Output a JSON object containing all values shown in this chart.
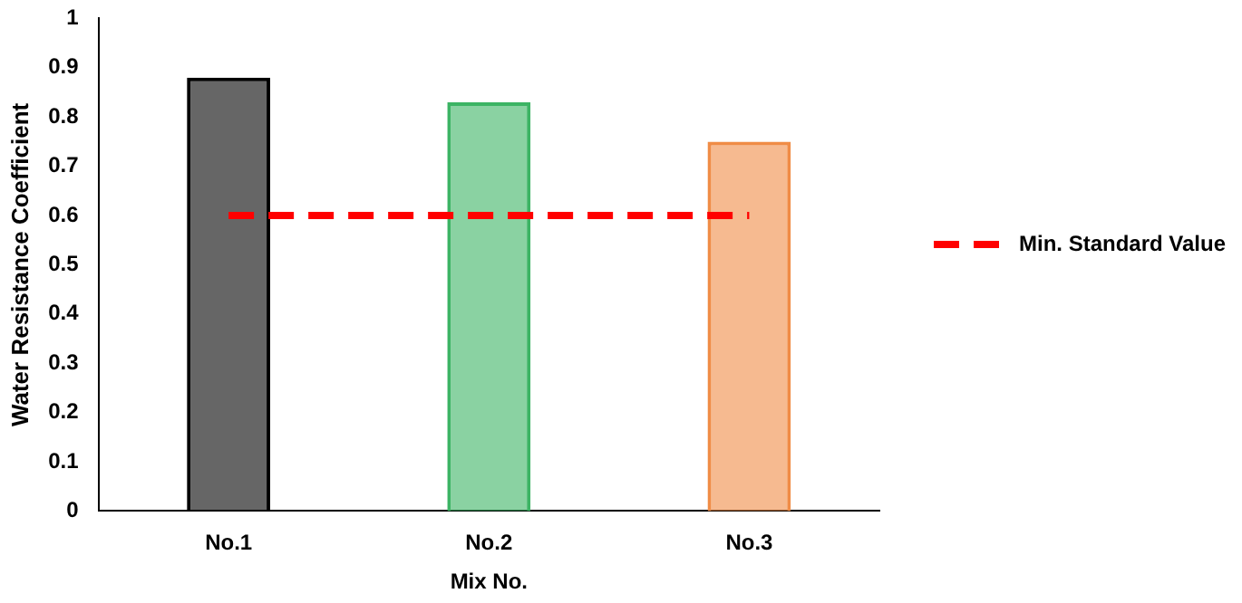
{
  "chart_data": {
    "type": "bar",
    "xlabel": "Mix No.",
    "ylabel": "Water Resistance Coefficient",
    "categories": [
      "No.1",
      "No.2",
      "No.3"
    ],
    "values": [
      0.88,
      0.83,
      0.75
    ],
    "colors": [
      "#000000",
      "#3cb464",
      "#f08c46"
    ],
    "ylim": [
      0,
      1
    ],
    "yticks": [
      0,
      0.1,
      0.2,
      0.3,
      0.4,
      0.5,
      0.6,
      0.7,
      0.8,
      0.9,
      1
    ],
    "grid": false,
    "ref_lines": [
      {
        "axis": "y",
        "value": 0.6,
        "label": "Min. Standard Value",
        "color": "#ff0000",
        "line_style": "dashed"
      }
    ],
    "legend": "right"
  }
}
